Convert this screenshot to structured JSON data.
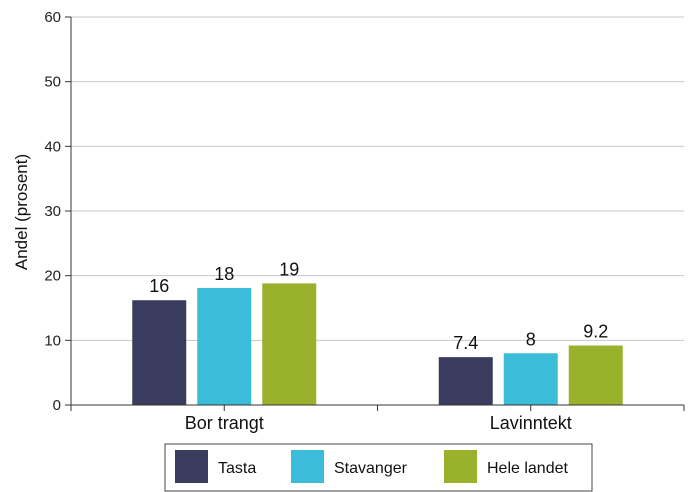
{
  "chart_data": {
    "type": "bar",
    "title": "",
    "xlabel": "",
    "ylabel": "Andel (prosent)",
    "ylim": [
      0,
      60
    ],
    "yticks": [
      0,
      10,
      20,
      30,
      40,
      50,
      60
    ],
    "grid": true,
    "legend_position": "bottom",
    "categories": [
      "Bor trangt",
      "Lavinntekt"
    ],
    "series": [
      {
        "name": "Tasta",
        "color": "#393c5e",
        "values": [
          16.2,
          7.4
        ],
        "labels": [
          "16",
          "7.4"
        ]
      },
      {
        "name": "Stavanger",
        "color": "#3bbcd9",
        "values": [
          18.1,
          8.0
        ],
        "labels": [
          "18",
          "8"
        ]
      },
      {
        "name": "Hele landet",
        "color": "#99b12b",
        "values": [
          18.8,
          9.2
        ],
        "labels": [
          "19",
          "9.2"
        ]
      }
    ]
  }
}
